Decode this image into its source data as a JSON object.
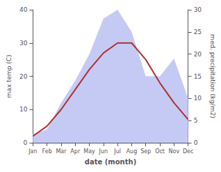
{
  "chart_data": {
    "type": "line",
    "xlabel": "date (month)",
    "ylabel": "max temp (C)",
    "y2label": "med. precipitation (kg/m2)",
    "categories": [
      "Jan",
      "Feb",
      "Mar",
      "Apr",
      "May",
      "Jun",
      "Jul",
      "Aug",
      "Sep",
      "Oct",
      "Nov",
      "Dec"
    ],
    "series": [
      {
        "type": "area",
        "axis": "y2",
        "color": "#c5caf5",
        "values": [
          2,
          3,
          9,
          14,
          20,
          28,
          30,
          25,
          15,
          15,
          19,
          10
        ]
      },
      {
        "type": "line",
        "color": "#b03030",
        "values": [
          2,
          5,
          10,
          16,
          22,
          27,
          30,
          30,
          25,
          18,
          12,
          7
        ]
      }
    ],
    "ylim": [
      0,
      40
    ],
    "yticks": [
      0,
      10,
      20,
      30,
      40
    ],
    "y2lim": [
      0,
      30
    ],
    "y2ticks": [
      0,
      5,
      10,
      15,
      20,
      25,
      30
    ],
    "grid": false
  }
}
